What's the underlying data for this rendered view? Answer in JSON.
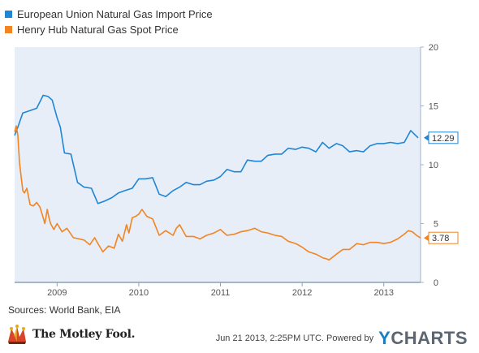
{
  "legend": [
    {
      "label": "European Union Natural Gas Import Price",
      "color": "#1f86d6"
    },
    {
      "label": "Henry Hub Natural Gas Spot Price",
      "color": "#f28422"
    }
  ],
  "footer": {
    "source": "Sources: World Bank, EIA",
    "brand": "The Motley Fool.",
    "logo_icon": "jester-hat-icon",
    "timestamp": "Jun 21 2013, 2:25PM UTC.  Powered by",
    "ycharts_y": "Y",
    "ycharts_rest": "CHARTS"
  },
  "chart_data": {
    "type": "line",
    "title": "",
    "xlabel": "",
    "ylabel": "",
    "xlim": [
      2008.48,
      2013.45
    ],
    "ylim": [
      0,
      20
    ],
    "yticks": [
      0,
      5,
      10,
      15,
      20
    ],
    "xticks": [
      2009,
      2010,
      2011,
      2012,
      2013
    ],
    "xtick_labels": [
      "2009",
      "2010",
      "2011",
      "2012",
      "2013"
    ],
    "grid": false,
    "legend_position": "top-left",
    "series": [
      {
        "name": "European Union Natural Gas Import Price",
        "color": "#1f86d6",
        "end_label": "12.29",
        "x": [
          2008.48,
          2008.52,
          2008.58,
          2008.67,
          2008.75,
          2008.83,
          2008.89,
          2008.94,
          2009.0,
          2009.04,
          2009.09,
          2009.17,
          2009.25,
          2009.33,
          2009.42,
          2009.5,
          2009.58,
          2009.67,
          2009.75,
          2009.83,
          2009.92,
          2010.0,
          2010.08,
          2010.17,
          2010.25,
          2010.33,
          2010.42,
          2010.5,
          2010.58,
          2010.67,
          2010.75,
          2010.83,
          2010.92,
          2011.0,
          2011.08,
          2011.17,
          2011.25,
          2011.33,
          2011.42,
          2011.5,
          2011.58,
          2011.67,
          2011.75,
          2011.83,
          2011.92,
          2012.0,
          2012.08,
          2012.17,
          2012.25,
          2012.33,
          2012.42,
          2012.5,
          2012.58,
          2012.67,
          2012.75,
          2012.83,
          2012.92,
          2013.0,
          2013.08,
          2013.17,
          2013.25,
          2013.33,
          2013.42
        ],
        "values": [
          12.5,
          13.2,
          14.4,
          14.6,
          14.8,
          15.9,
          15.8,
          15.5,
          14.0,
          13.2,
          11.0,
          10.9,
          8.5,
          8.1,
          8.0,
          6.7,
          6.9,
          7.2,
          7.6,
          7.8,
          8.0,
          8.8,
          8.8,
          8.9,
          7.5,
          7.3,
          7.8,
          8.1,
          8.5,
          8.3,
          8.3,
          8.6,
          8.7,
          9.0,
          9.6,
          9.4,
          9.4,
          10.4,
          10.3,
          10.3,
          10.8,
          10.9,
          10.9,
          11.4,
          11.3,
          11.5,
          11.4,
          11.1,
          11.9,
          11.4,
          11.8,
          11.6,
          11.1,
          11.2,
          11.1,
          11.6,
          11.8,
          11.8,
          11.9,
          11.8,
          11.9,
          12.9,
          12.29
        ]
      },
      {
        "name": "Henry Hub Natural Gas Spot Price",
        "color": "#f28422",
        "end_label": "3.78",
        "x": [
          2008.48,
          2008.5,
          2008.52,
          2008.54,
          2008.56,
          2008.58,
          2008.6,
          2008.63,
          2008.67,
          2008.71,
          2008.75,
          2008.79,
          2008.83,
          2008.85,
          2008.88,
          2008.9,
          2008.92,
          2008.96,
          2009.0,
          2009.06,
          2009.12,
          2009.2,
          2009.27,
          2009.33,
          2009.4,
          2009.46,
          2009.5,
          2009.56,
          2009.63,
          2009.7,
          2009.75,
          2009.8,
          2009.85,
          2009.88,
          2009.92,
          2009.96,
          2010.0,
          2010.04,
          2010.1,
          2010.17,
          2010.25,
          2010.33,
          2010.42,
          2010.46,
          2010.5,
          2010.58,
          2010.67,
          2010.75,
          2010.83,
          2010.92,
          2011.0,
          2011.08,
          2011.17,
          2011.25,
          2011.33,
          2011.42,
          2011.5,
          2011.58,
          2011.67,
          2011.75,
          2011.83,
          2011.92,
          2012.0,
          2012.08,
          2012.17,
          2012.25,
          2012.3,
          2012.33,
          2012.42,
          2012.5,
          2012.58,
          2012.67,
          2012.75,
          2012.83,
          2012.92,
          2013.0,
          2013.08,
          2013.17,
          2013.25,
          2013.3,
          2013.35,
          2013.4,
          2013.45
        ],
        "values": [
          12.8,
          13.3,
          12.5,
          10.2,
          9.0,
          7.8,
          7.6,
          8.0,
          6.6,
          6.5,
          6.8,
          6.4,
          5.5,
          5.0,
          6.2,
          5.5,
          5.0,
          4.5,
          5.0,
          4.3,
          4.6,
          3.8,
          3.7,
          3.6,
          3.2,
          3.8,
          3.3,
          2.6,
          3.1,
          2.9,
          4.1,
          3.5,
          4.9,
          4.2,
          5.5,
          5.6,
          5.8,
          6.2,
          5.6,
          5.4,
          4.0,
          4.4,
          4.0,
          4.6,
          4.9,
          3.9,
          3.9,
          3.7,
          4.0,
          4.2,
          4.5,
          4.0,
          4.1,
          4.3,
          4.4,
          4.6,
          4.3,
          4.2,
          4.0,
          3.9,
          3.5,
          3.3,
          3.0,
          2.6,
          2.4,
          2.1,
          2.0,
          1.9,
          2.4,
          2.8,
          2.8,
          3.3,
          3.2,
          3.4,
          3.4,
          3.3,
          3.4,
          3.7,
          4.1,
          4.4,
          4.3,
          4.0,
          3.78
        ]
      }
    ]
  }
}
